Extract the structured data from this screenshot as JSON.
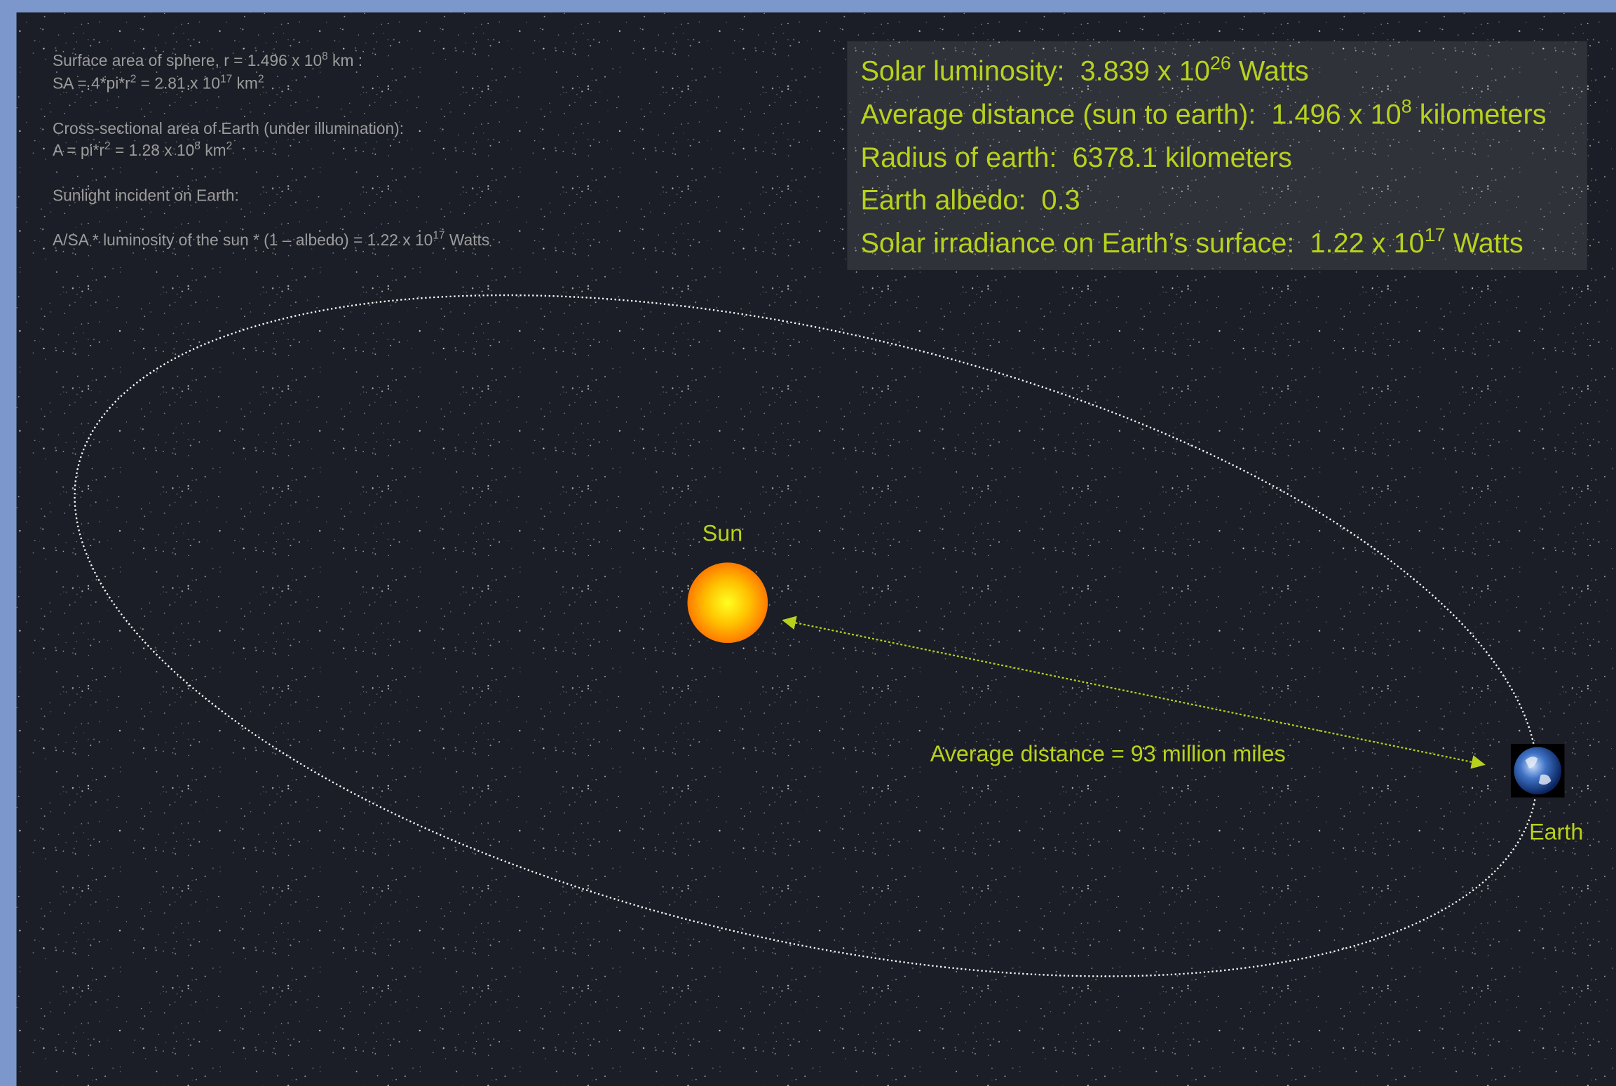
{
  "notes": [
    [
      "Surface area of sphere, r = 1.496 x 10",
      "8",
      " km :"
    ],
    [
      "SA = 4*pi*r",
      "2",
      " = 2.81 x 10",
      "17",
      " km",
      "2"
    ],
    [
      "Cross-sectional area of Earth (under illumination):"
    ],
    [
      "A = pi*r",
      "2",
      " = 1.28 x 10",
      "8",
      " km",
      "2"
    ],
    [
      "Sunlight incident on Earth:"
    ],
    [
      "A/SA * luminosity of the sun * (1 – albedo) = 1.22 x 10",
      "17",
      " Watts"
    ]
  ],
  "facts": [
    [
      "Solar luminosity:  3.839 x 10",
      "26",
      " Watts"
    ],
    [
      "Average distance (sun to earth):  1.496 x 10",
      "8",
      " kilometers"
    ],
    [
      "Radius of earth:  6378.1 kilometers"
    ],
    [
      "Earth albedo:  0.3"
    ],
    [
      "Solar irradiance on Earth’s surface:  1.22 x 10",
      "17",
      " Watts"
    ]
  ],
  "labels": {
    "sun": "Sun",
    "earth": "Earth",
    "distance": "Average distance = 93 million miles"
  }
}
